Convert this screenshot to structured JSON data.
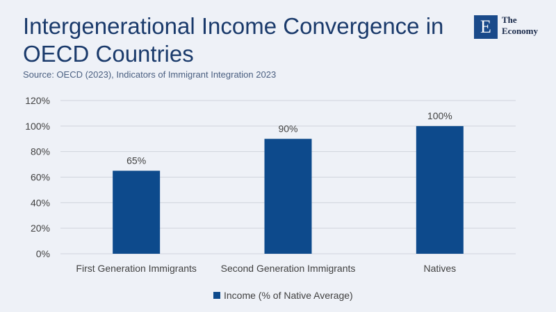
{
  "header": {
    "title": "Intergenerational Income Convergence in OECD Countries",
    "subtitle": "Source: OECD (2023), Indicators of Immigrant Integration 2023"
  },
  "logo": {
    "mark": "E",
    "name": "The Economy"
  },
  "colors": {
    "bar": "#0d4a8c",
    "grid": "#d0d4dc",
    "title": "#1a3a6b"
  },
  "chart_data": {
    "type": "bar",
    "title": "Intergenerational Income Convergence in OECD Countries",
    "categories": [
      "First Generation Immigrants",
      "Second Generation Immigrants",
      "Natives"
    ],
    "series": [
      {
        "name": "Income (% of Native Average)",
        "values": [
          65,
          90,
          100
        ]
      }
    ],
    "data_labels": [
      "65%",
      "90%",
      "100%"
    ],
    "y_ticks": [
      "0%",
      "20%",
      "40%",
      "60%",
      "80%",
      "100%",
      "120%"
    ],
    "ylim": [
      0,
      120
    ],
    "xlabel": "",
    "ylabel": "",
    "grid": true,
    "legend_position": "bottom"
  }
}
